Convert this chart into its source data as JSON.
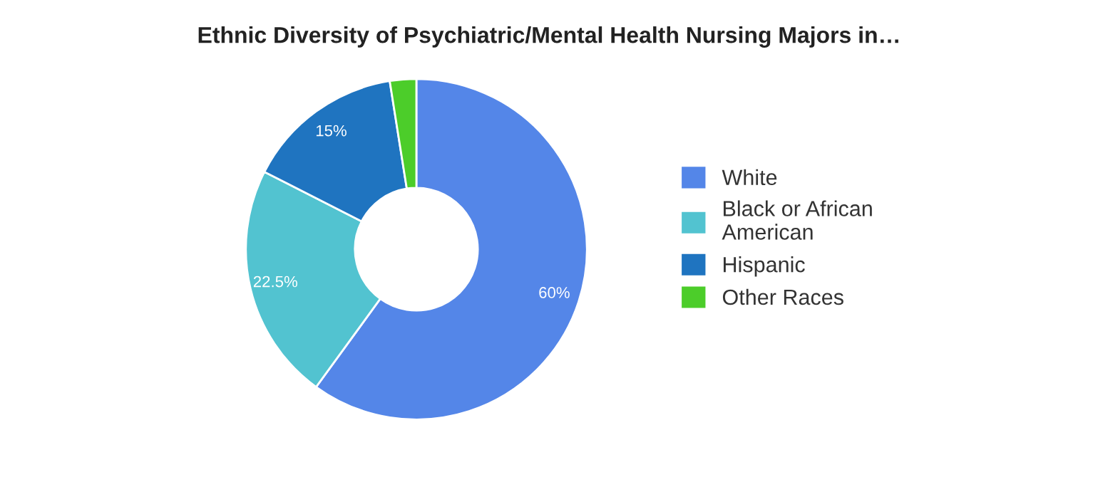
{
  "chart_data": {
    "type": "donut",
    "title": "Ethnic Diversity of Psychiatric/Mental Health Nursing Majors in…",
    "categories": [
      "White",
      "Black or African\nAmerican",
      "Hispanic",
      "Other Races"
    ],
    "values": [
      60,
      22.5,
      15,
      2.5
    ],
    "colors": [
      "#5486e8",
      "#52c3d0",
      "#1f74c0",
      "#4ccd2a"
    ],
    "value_labels": [
      "60%",
      "22.5%",
      "15%",
      null
    ],
    "legend": "right"
  }
}
